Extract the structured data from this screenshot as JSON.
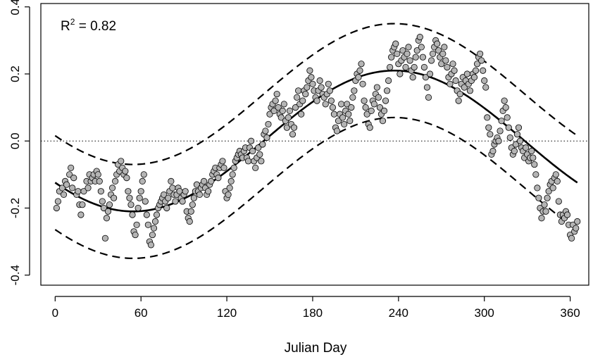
{
  "chart_data": {
    "type": "scatter",
    "title": "",
    "xlabel": "Julian Day",
    "ylabel": "",
    "xlim": [
      -10,
      373
    ],
    "ylim": [
      -0.43,
      0.41
    ],
    "x_ticks": [
      0,
      60,
      120,
      180,
      240,
      300,
      360
    ],
    "y_ticks": [
      -0.4,
      -0.2,
      0.0,
      0.2,
      0.4
    ],
    "x_tick_labels": [
      "0",
      "60",
      "120",
      "180",
      "240",
      "300",
      "360"
    ],
    "y_tick_labels": [
      "-0.4",
      "-0.2",
      "0.0",
      "0.2",
      "0.4"
    ],
    "annotation": {
      "r2_label": "R",
      "r2_sup": "2",
      "r2_value": " = 0.82"
    },
    "reference_line": {
      "y": 0.0,
      "style": "dotted"
    },
    "fit": {
      "mean": 0.0,
      "amplitude": 0.21,
      "peak_day": 237,
      "period": 365,
      "band_halfwidth": 0.14
    },
    "grid": false,
    "legend": "none",
    "colors": {
      "points_fill": "#b4b4b4",
      "points_stroke": "#000000",
      "lines": "#000000"
    },
    "points": [
      [
        1,
        -0.2
      ],
      [
        2,
        -0.18
      ],
      [
        3,
        -0.15
      ],
      [
        5,
        -0.14
      ],
      [
        6,
        -0.16
      ],
      [
        7,
        -0.12
      ],
      [
        8,
        -0.13
      ],
      [
        10,
        -0.1
      ],
      [
        11,
        -0.08
      ],
      [
        12,
        -0.14
      ],
      [
        13,
        -0.11
      ],
      [
        15,
        -0.16
      ],
      [
        16,
        -0.15
      ],
      [
        17,
        -0.19
      ],
      [
        18,
        -0.22
      ],
      [
        19,
        -0.19
      ],
      [
        20,
        -0.15
      ],
      [
        22,
        -0.12
      ],
      [
        23,
        -0.14
      ],
      [
        24,
        -0.1
      ],
      [
        25,
        -0.12
      ],
      [
        26,
        -0.11
      ],
      [
        27,
        -0.1
      ],
      [
        28,
        -0.12
      ],
      [
        29,
        -0.09
      ],
      [
        30,
        -0.1
      ],
      [
        31,
        -0.12
      ],
      [
        32,
        -0.15
      ],
      [
        33,
        -0.18
      ],
      [
        34,
        -0.2
      ],
      [
        35,
        -0.29
      ],
      [
        36,
        -0.23
      ],
      [
        37,
        -0.21
      ],
      [
        38,
        -0.19
      ],
      [
        39,
        -0.16
      ],
      [
        40,
        -0.14
      ],
      [
        41,
        -0.17
      ],
      [
        42,
        -0.12
      ],
      [
        43,
        -0.1
      ],
      [
        44,
        -0.07
      ],
      [
        45,
        -0.09
      ],
      [
        46,
        -0.06
      ],
      [
        47,
        -0.08
      ],
      [
        48,
        -0.1
      ],
      [
        49,
        -0.09
      ],
      [
        50,
        -0.11
      ],
      [
        51,
        -0.15
      ],
      [
        52,
        -0.17
      ],
      [
        53,
        -0.19
      ],
      [
        54,
        -0.22
      ],
      [
        55,
        -0.27
      ],
      [
        56,
        -0.28
      ],
      [
        57,
        -0.25
      ],
      [
        58,
        -0.2
      ],
      [
        59,
        -0.17
      ],
      [
        60,
        -0.15
      ],
      [
        61,
        -0.12
      ],
      [
        62,
        -0.1
      ],
      [
        63,
        -0.18
      ],
      [
        64,
        -0.22
      ],
      [
        65,
        -0.25
      ],
      [
        66,
        -0.3
      ],
      [
        67,
        -0.31
      ],
      [
        68,
        -0.28
      ],
      [
        69,
        -0.26
      ],
      [
        70,
        -0.24
      ],
      [
        71,
        -0.22
      ],
      [
        72,
        -0.2
      ],
      [
        73,
        -0.19
      ],
      [
        74,
        -0.18
      ],
      [
        75,
        -0.17
      ],
      [
        76,
        -0.16
      ],
      [
        77,
        -0.18
      ],
      [
        78,
        -0.2
      ],
      [
        79,
        -0.17
      ],
      [
        80,
        -0.15
      ],
      [
        81,
        -0.12
      ],
      [
        82,
        -0.14
      ],
      [
        83,
        -0.16
      ],
      [
        84,
        -0.18
      ],
      [
        85,
        -0.16
      ],
      [
        86,
        -0.14
      ],
      [
        87,
        -0.15
      ],
      [
        88,
        -0.17
      ],
      [
        89,
        -0.18
      ],
      [
        90,
        -0.16
      ],
      [
        91,
        -0.15
      ],
      [
        92,
        -0.21
      ],
      [
        93,
        -0.23
      ],
      [
        94,
        -0.24
      ],
      [
        95,
        -0.21
      ],
      [
        96,
        -0.19
      ],
      [
        97,
        -0.17
      ],
      [
        98,
        -0.15
      ],
      [
        99,
        -0.13
      ],
      [
        100,
        -0.15
      ],
      [
        101,
        -0.16
      ],
      [
        102,
        -0.14
      ],
      [
        103,
        -0.13
      ],
      [
        104,
        -0.12
      ],
      [
        105,
        -0.14
      ],
      [
        106,
        -0.16
      ],
      [
        107,
        -0.15
      ],
      [
        108,
        -0.13
      ],
      [
        109,
        -0.12
      ],
      [
        110,
        -0.1
      ],
      [
        111,
        -0.09
      ],
      [
        112,
        -0.08
      ],
      [
        113,
        -0.1
      ],
      [
        114,
        -0.11
      ],
      [
        115,
        -0.08
      ],
      [
        116,
        -0.07
      ],
      [
        117,
        -0.06
      ],
      [
        118,
        -0.08
      ],
      [
        119,
        -0.15
      ],
      [
        120,
        -0.17
      ],
      [
        121,
        -0.16
      ],
      [
        122,
        -0.14
      ],
      [
        123,
        -0.12
      ],
      [
        124,
        -0.1
      ],
      [
        125,
        -0.08
      ],
      [
        126,
        -0.06
      ],
      [
        127,
        -0.05
      ],
      [
        128,
        -0.04
      ],
      [
        129,
        -0.03
      ],
      [
        130,
        -0.04
      ],
      [
        131,
        -0.05
      ],
      [
        132,
        -0.03
      ],
      [
        133,
        -0.02
      ],
      [
        134,
        -0.05
      ],
      [
        135,
        -0.06
      ],
      [
        136,
        -0.02
      ],
      [
        137,
        0.0
      ],
      [
        138,
        -0.03
      ],
      [
        139,
        -0.06
      ],
      [
        140,
        -0.08
      ],
      [
        141,
        -0.05
      ],
      [
        142,
        -0.02
      ],
      [
        143,
        -0.04
      ],
      [
        144,
        -0.06
      ],
      [
        145,
        -0.01
      ],
      [
        146,
        0.02
      ],
      [
        147,
        0.03
      ],
      [
        148,
        0.01
      ],
      [
        149,
        0.05
      ],
      [
        150,
        0.08
      ],
      [
        151,
        0.1
      ],
      [
        152,
        0.11
      ],
      [
        153,
        0.09
      ],
      [
        154,
        0.12
      ],
      [
        155,
        0.14
      ],
      [
        156,
        0.1
      ],
      [
        157,
        0.08
      ],
      [
        158,
        0.07
      ],
      [
        159,
        0.09
      ],
      [
        160,
        0.11
      ],
      [
        161,
        0.06
      ],
      [
        162,
        0.04
      ],
      [
        163,
        0.07
      ],
      [
        164,
        0.09
      ],
      [
        165,
        0.05
      ],
      [
        166,
        0.02
      ],
      [
        167,
        0.04
      ],
      [
        168,
        0.1
      ],
      [
        169,
        0.13
      ],
      [
        170,
        0.15
      ],
      [
        171,
        0.11
      ],
      [
        172,
        0.08
      ],
      [
        173,
        0.12
      ],
      [
        174,
        0.15
      ],
      [
        175,
        0.14
      ],
      [
        176,
        0.16
      ],
      [
        177,
        0.18
      ],
      [
        178,
        0.21
      ],
      [
        179,
        0.19
      ],
      [
        180,
        0.17
      ],
      [
        181,
        0.15
      ],
      [
        182,
        0.13
      ],
      [
        183,
        0.12
      ],
      [
        184,
        0.15
      ],
      [
        185,
        0.18
      ],
      [
        186,
        0.16
      ],
      [
        187,
        0.14
      ],
      [
        188,
        0.13
      ],
      [
        189,
        0.11
      ],
      [
        190,
        0.14
      ],
      [
        191,
        0.17
      ],
      [
        192,
        0.15
      ],
      [
        193,
        0.12
      ],
      [
        194,
        0.1
      ],
      [
        195,
        0.08
      ],
      [
        196,
        0.04
      ],
      [
        197,
        0.03
      ],
      [
        198,
        0.06
      ],
      [
        199,
        0.08
      ],
      [
        200,
        0.11
      ],
      [
        201,
        0.07
      ],
      [
        202,
        0.05
      ],
      [
        203,
        0.09
      ],
      [
        204,
        0.11
      ],
      [
        205,
        0.08
      ],
      [
        206,
        0.06
      ],
      [
        207,
        0.1
      ],
      [
        208,
        0.13
      ],
      [
        209,
        0.15
      ],
      [
        210,
        0.18
      ],
      [
        211,
        0.2
      ],
      [
        212,
        0.19
      ],
      [
        213,
        0.21
      ],
      [
        214,
        0.23
      ],
      [
        215,
        0.17
      ],
      [
        216,
        0.12
      ],
      [
        217,
        0.1
      ],
      [
        218,
        0.08
      ],
      [
        219,
        0.05
      ],
      [
        220,
        0.04
      ],
      [
        221,
        0.09
      ],
      [
        222,
        0.12
      ],
      [
        223,
        0.11
      ],
      [
        224,
        0.14
      ],
      [
        225,
        0.16
      ],
      [
        226,
        0.13
      ],
      [
        227,
        0.1
      ],
      [
        228,
        0.08
      ],
      [
        229,
        0.06
      ],
      [
        230,
        0.09
      ],
      [
        231,
        0.12
      ],
      [
        232,
        0.15
      ],
      [
        233,
        0.18
      ],
      [
        234,
        0.22
      ],
      [
        235,
        0.25
      ],
      [
        236,
        0.27
      ],
      [
        237,
        0.28
      ],
      [
        238,
        0.29
      ],
      [
        239,
        0.26
      ],
      [
        240,
        0.23
      ],
      [
        241,
        0.2
      ],
      [
        242,
        0.24
      ],
      [
        243,
        0.27
      ],
      [
        244,
        0.25
      ],
      [
        245,
        0.22
      ],
      [
        246,
        0.26
      ],
      [
        247,
        0.28
      ],
      [
        248,
        0.24
      ],
      [
        249,
        0.21
      ],
      [
        250,
        0.19
      ],
      [
        251,
        0.22
      ],
      [
        252,
        0.25
      ],
      [
        253,
        0.27
      ],
      [
        254,
        0.3
      ],
      [
        255,
        0.31
      ],
      [
        256,
        0.28
      ],
      [
        257,
        0.25
      ],
      [
        258,
        0.22
      ],
      [
        259,
        0.19
      ],
      [
        260,
        0.16
      ],
      [
        261,
        0.13
      ],
      [
        262,
        0.2
      ],
      [
        263,
        0.24
      ],
      [
        264,
        0.26
      ],
      [
        265,
        0.28
      ],
      [
        266,
        0.3
      ],
      [
        267,
        0.29
      ],
      [
        268,
        0.27
      ],
      [
        269,
        0.25
      ],
      [
        270,
        0.23
      ],
      [
        271,
        0.26
      ],
      [
        272,
        0.28
      ],
      [
        273,
        0.24
      ],
      [
        274,
        0.22
      ],
      [
        275,
        0.19
      ],
      [
        276,
        0.17
      ],
      [
        277,
        0.2
      ],
      [
        278,
        0.23
      ],
      [
        279,
        0.21
      ],
      [
        280,
        0.18
      ],
      [
        281,
        0.15
      ],
      [
        282,
        0.12
      ],
      [
        283,
        0.14
      ],
      [
        284,
        0.17
      ],
      [
        285,
        0.19
      ],
      [
        286,
        0.16
      ],
      [
        287,
        0.18
      ],
      [
        288,
        0.2
      ],
      [
        289,
        0.17
      ],
      [
        290,
        0.15
      ],
      [
        291,
        0.18
      ],
      [
        292,
        0.2
      ],
      [
        293,
        0.19
      ],
      [
        294,
        0.21
      ],
      [
        295,
        0.23
      ],
      [
        296,
        0.25
      ],
      [
        297,
        0.26
      ],
      [
        298,
        0.24
      ],
      [
        299,
        0.21
      ],
      [
        300,
        0.18
      ],
      [
        301,
        0.16
      ],
      [
        302,
        0.07
      ],
      [
        303,
        0.04
      ],
      [
        304,
        0.02
      ],
      [
        305,
        -0.04
      ],
      [
        306,
        -0.03
      ],
      [
        307,
        -0.01
      ],
      [
        308,
        0.0
      ],
      [
        309,
        0.01
      ],
      [
        310,
        0.0
      ],
      [
        311,
        0.03
      ],
      [
        312,
        0.06
      ],
      [
        313,
        0.09
      ],
      [
        314,
        0.12
      ],
      [
        315,
        0.1
      ],
      [
        316,
        0.07
      ],
      [
        317,
        0.04
      ],
      [
        318,
        0.01
      ],
      [
        319,
        -0.02
      ],
      [
        320,
        -0.04
      ],
      [
        321,
        -0.03
      ],
      [
        322,
        -0.01
      ],
      [
        323,
        0.02
      ],
      [
        324,
        0.04
      ],
      [
        325,
        0.0
      ],
      [
        326,
        -0.02
      ],
      [
        327,
        -0.03
      ],
      [
        328,
        -0.05
      ],
      [
        329,
        -0.02
      ],
      [
        330,
        -0.04
      ],
      [
        331,
        -0.06
      ],
      [
        332,
        -0.05
      ],
      [
        333,
        -0.03
      ],
      [
        334,
        -0.05
      ],
      [
        335,
        -0.07
      ],
      [
        336,
        -0.1
      ],
      [
        337,
        -0.14
      ],
      [
        338,
        -0.17
      ],
      [
        339,
        -0.2
      ],
      [
        340,
        -0.23
      ],
      [
        341,
        -0.21
      ],
      [
        342,
        -0.19
      ],
      [
        343,
        -0.21
      ],
      [
        344,
        -0.17
      ],
      [
        345,
        -0.15
      ],
      [
        346,
        -0.13
      ],
      [
        347,
        -0.12
      ],
      [
        348,
        -0.14
      ],
      [
        349,
        -0.11
      ],
      [
        350,
        -0.1
      ],
      [
        351,
        -0.12
      ],
      [
        352,
        -0.18
      ],
      [
        353,
        -0.22
      ],
      [
        354,
        -0.24
      ],
      [
        355,
        -0.22
      ],
      [
        356,
        -0.23
      ],
      [
        357,
        -0.21
      ],
      [
        358,
        -0.22
      ],
      [
        359,
        -0.25
      ],
      [
        360,
        -0.28
      ],
      [
        361,
        -0.29
      ],
      [
        362,
        -0.25
      ],
      [
        363,
        -0.27
      ],
      [
        364,
        -0.26
      ],
      [
        365,
        -0.24
      ]
    ]
  }
}
